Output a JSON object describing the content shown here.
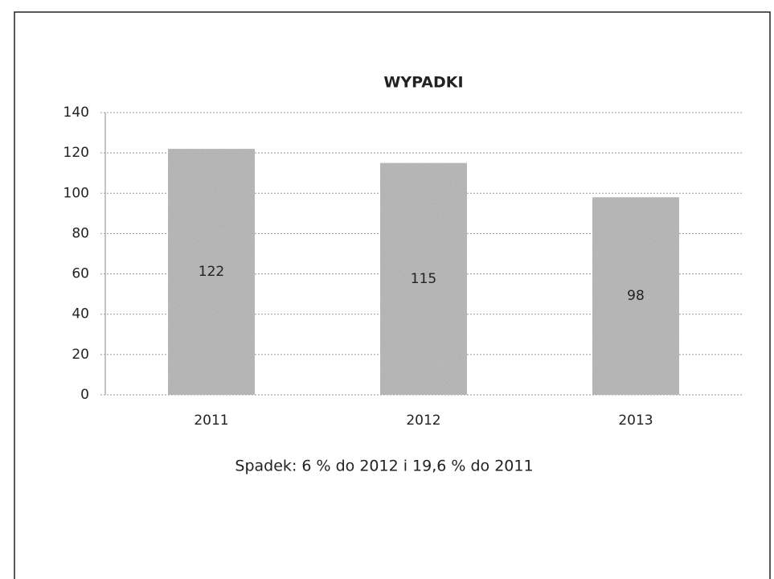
{
  "chart_data": {
    "type": "bar",
    "title": "WYPADKI",
    "categories": [
      "2011",
      "2012",
      "2013"
    ],
    "values": [
      122,
      115,
      98
    ],
    "color": "#b4b4b4",
    "ylim": [
      0,
      140
    ],
    "yticks": [
      0,
      20,
      40,
      60,
      80,
      100,
      120,
      140
    ],
    "grid": true,
    "annotation": "Spadek: 6 % do 2012 i 19,6 % do 2011"
  }
}
